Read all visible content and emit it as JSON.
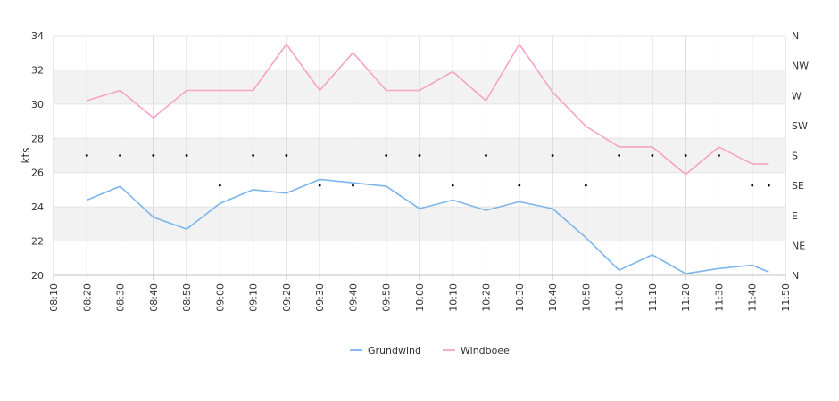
{
  "chart_data": {
    "type": "line",
    "ylabel": "kts",
    "ylim": [
      20,
      34
    ],
    "y_ticks": [
      20,
      22,
      24,
      26,
      28,
      30,
      32,
      34
    ],
    "x_ticks": [
      "08:10",
      "08:20",
      "08:30",
      "08:40",
      "08:50",
      "09:00",
      "09:10",
      "09:20",
      "09:30",
      "09:40",
      "09:50",
      "10:00",
      "10:10",
      "10:20",
      "10:30",
      "10:40",
      "10:50",
      "11:00",
      "11:10",
      "11:20",
      "11:30",
      "11:40",
      "11:50"
    ],
    "x_range": [
      "08:10",
      "11:50"
    ],
    "x": [
      "08:20",
      "08:30",
      "08:40",
      "08:50",
      "09:00",
      "09:10",
      "09:20",
      "09:30",
      "09:40",
      "09:50",
      "10:00",
      "10:10",
      "10:20",
      "10:30",
      "10:40",
      "10:50",
      "11:00",
      "11:10",
      "11:20",
      "11:30",
      "11:40",
      "11:45"
    ],
    "series": [
      {
        "name": "Grundwind",
        "color": "#7cb5ec",
        "values": [
          24.4,
          25.2,
          23.4,
          22.7,
          24.2,
          25.0,
          24.8,
          25.6,
          25.4,
          25.2,
          23.9,
          24.4,
          23.8,
          24.3,
          23.9,
          22.2,
          20.3,
          21.2,
          20.1,
          20.4,
          20.6,
          20.2
        ]
      },
      {
        "name": "Windboee",
        "color": "#f7a3c8",
        "values": [
          30.2,
          30.8,
          29.2,
          30.8,
          30.8,
          30.8,
          33.5,
          30.8,
          33.0,
          30.8,
          30.8,
          31.9,
          30.2,
          33.5,
          30.7,
          28.7,
          27.5,
          27.5,
          25.9,
          27.5,
          26.5,
          26.5
        ]
      }
    ],
    "direction_axis": {
      "ticks": [
        "N",
        "NW",
        "W",
        "SW",
        "S",
        "SE",
        "E",
        "NE",
        "N"
      ],
      "tick_degrees": [
        360,
        315,
        270,
        225,
        180,
        135,
        90,
        45,
        0
      ]
    },
    "direction_points": {
      "x": [
        "08:20",
        "08:30",
        "08:40",
        "08:50",
        "09:00",
        "09:10",
        "09:20",
        "09:30",
        "09:40",
        "09:50",
        "10:00",
        "10:10",
        "10:20",
        "10:30",
        "10:40",
        "10:50",
        "11:00",
        "11:10",
        "11:20",
        "11:30",
        "11:40",
        "11:45"
      ],
      "degrees": [
        180,
        180,
        180,
        180,
        135,
        180,
        180,
        135,
        135,
        180,
        180,
        135,
        180,
        135,
        180,
        135,
        180,
        180,
        180,
        180,
        135,
        135
      ]
    },
    "grid": true,
    "alternating_bands": true,
    "legend_position": "bottom-center"
  }
}
